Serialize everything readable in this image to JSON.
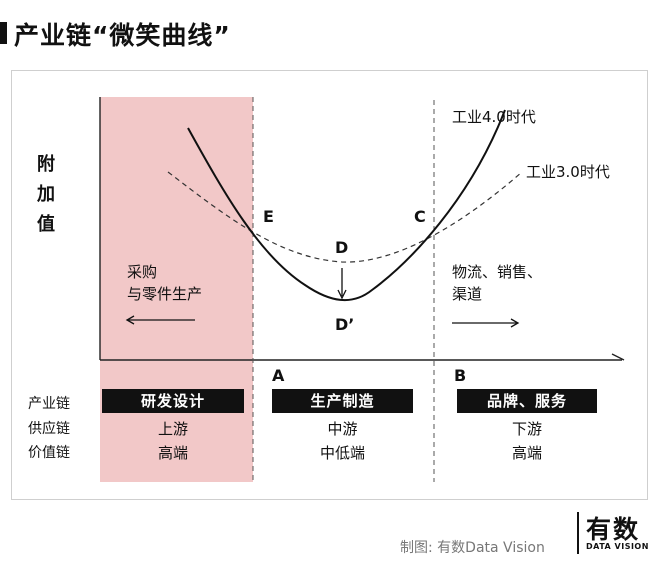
{
  "heading": "产业链“微笑曲线”",
  "y_axis_label": [
    "附",
    "加",
    "值"
  ],
  "curves": {
    "industry_40": "工业4.0时代",
    "industry_30": "工业3.0时代"
  },
  "points": {
    "E": "E",
    "C": "C",
    "D": "D",
    "D_prime": "D’",
    "A": "A",
    "B": "B"
  },
  "left_note": [
    "采购",
    "与零件生产"
  ],
  "right_note": [
    "物流、销售、",
    "渠道"
  ],
  "row_labels": [
    "产业链",
    "供应链",
    "价值链"
  ],
  "columns": [
    {
      "chain": "研发设计",
      "supply": "上游",
      "value": "高端"
    },
    {
      "chain": "生产制造",
      "supply": "中游",
      "value": "中低端"
    },
    {
      "chain": "品牌、服务",
      "supply": "下游",
      "value": "高端"
    }
  ],
  "footer": "制图: 有数Data Vision",
  "logo": {
    "cn": "有数",
    "en": "DATA VISION"
  },
  "colors": {
    "highlight": "#f2c8c8",
    "ink": "#111111"
  }
}
